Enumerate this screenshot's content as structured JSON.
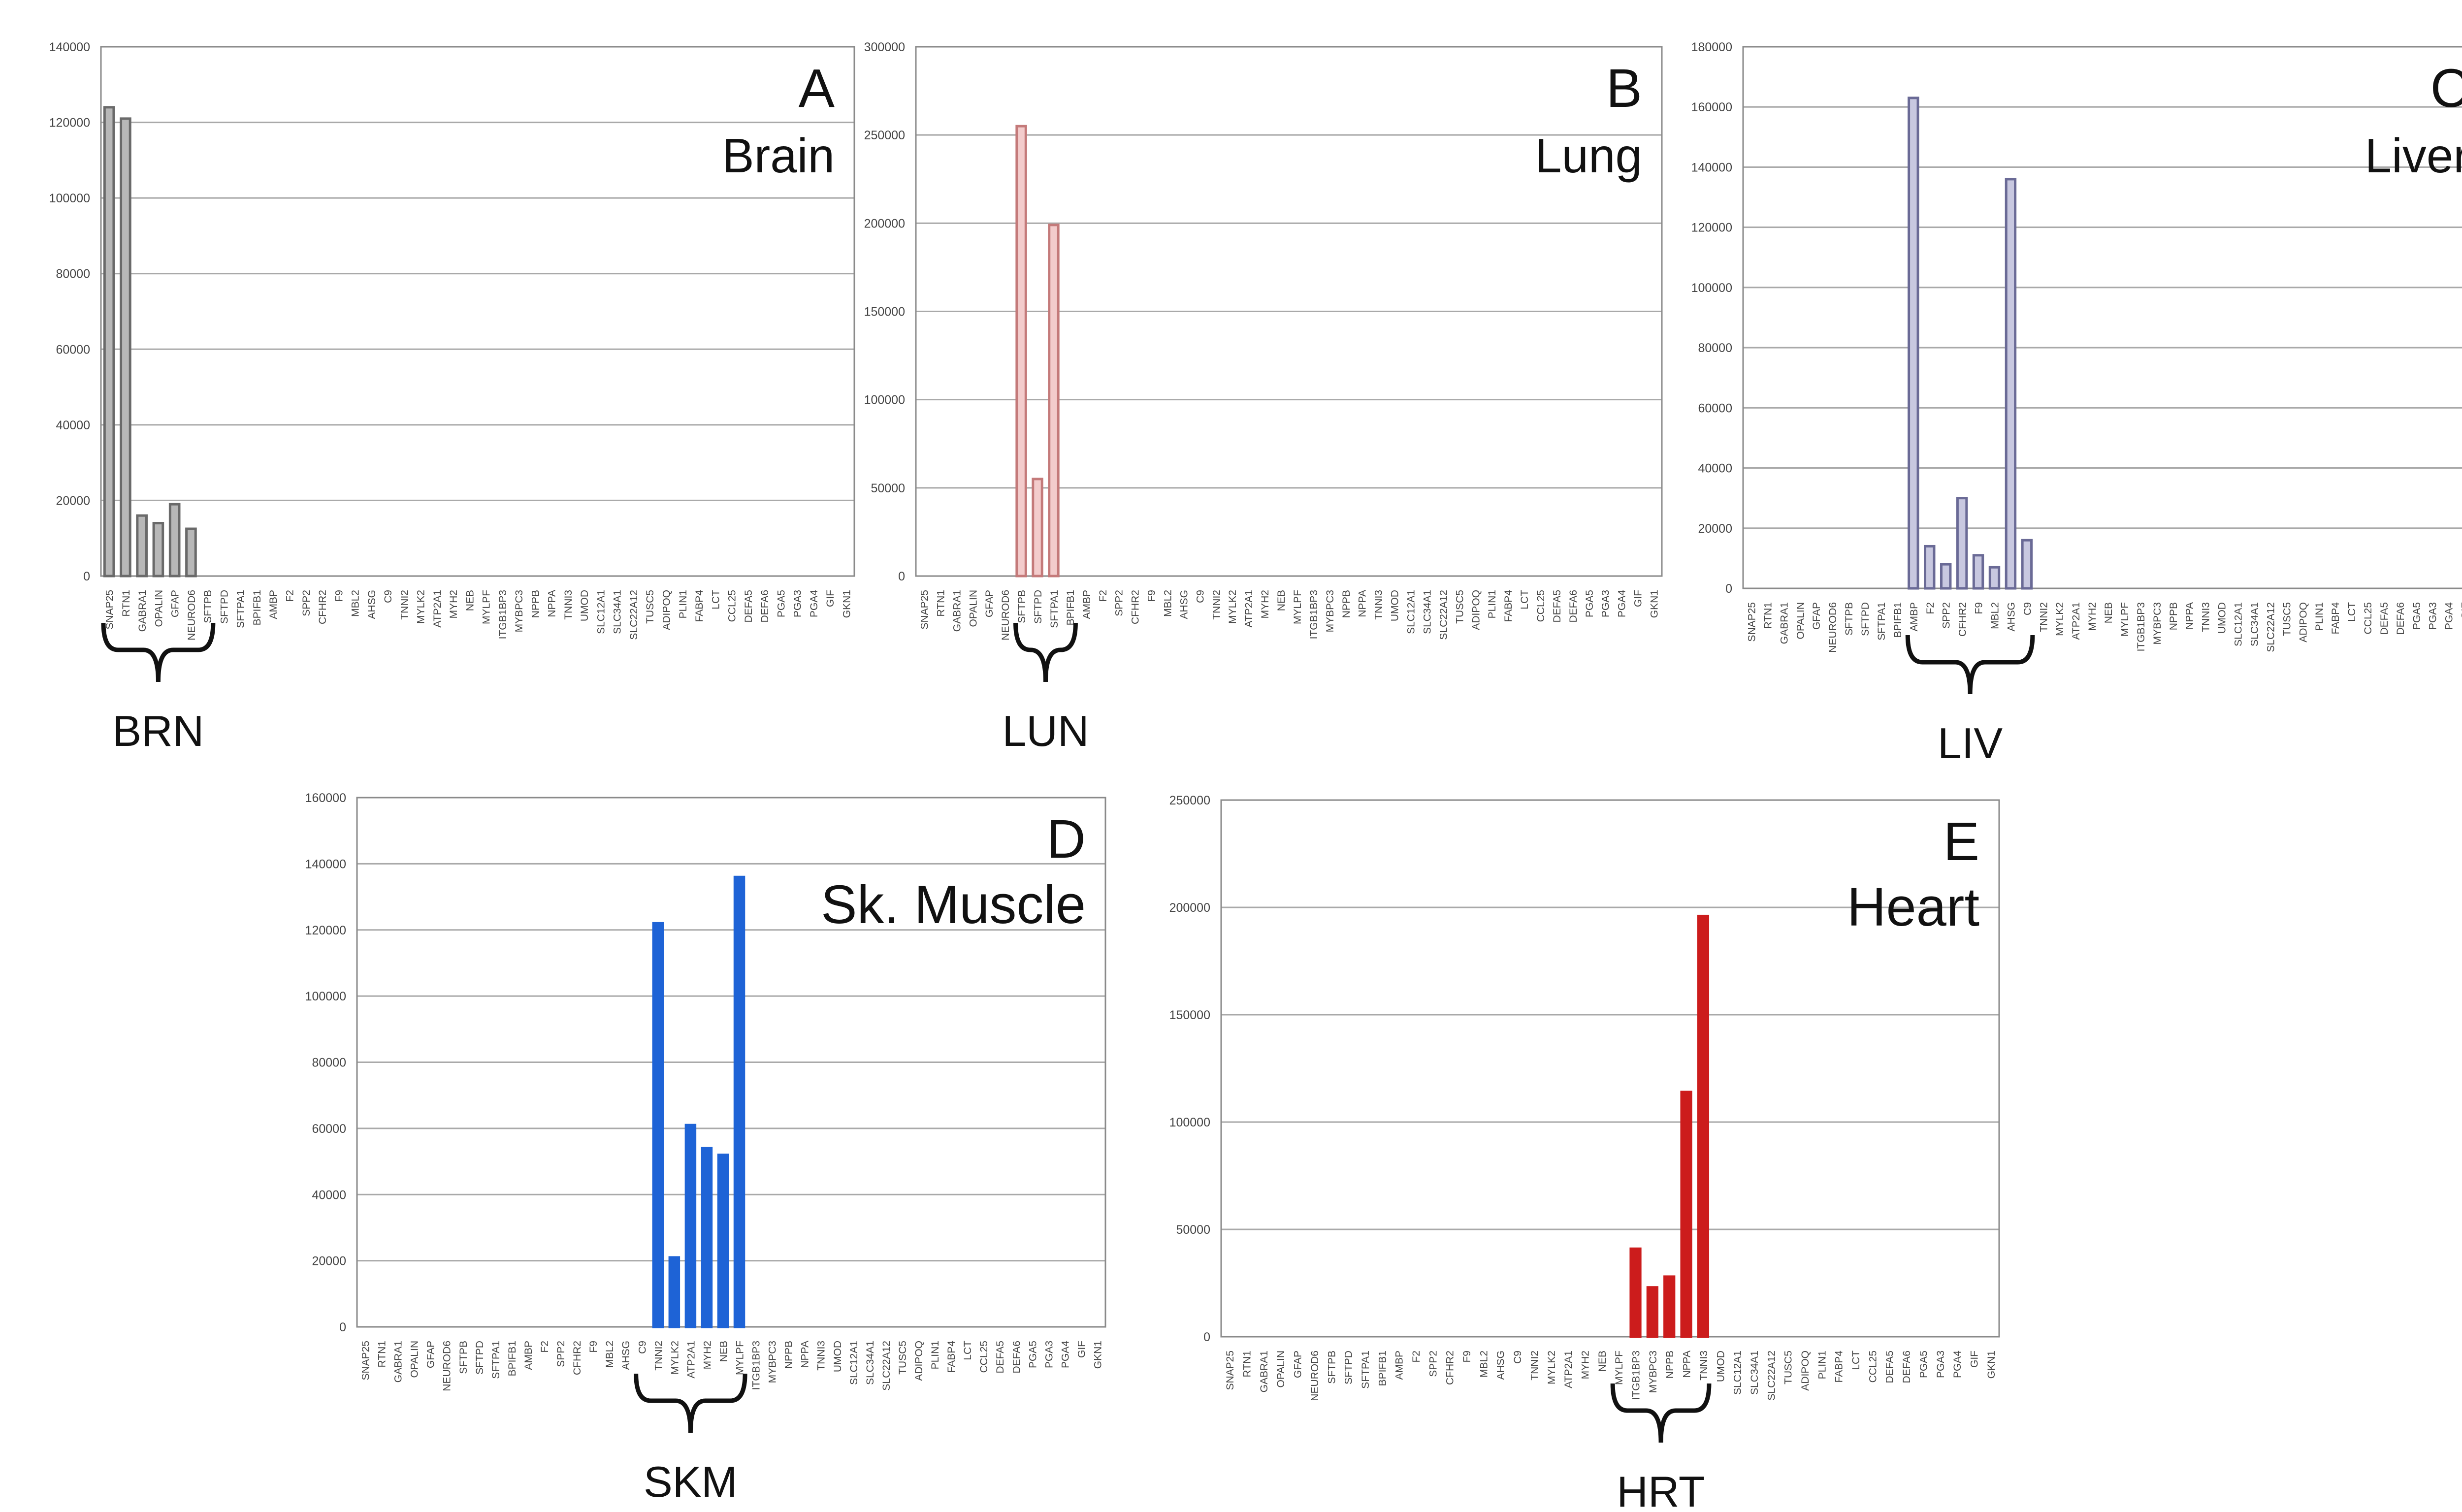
{
  "genes": [
    "SNAP25",
    "RTN1",
    "GABRA1",
    "OPALIN",
    "GFAP",
    "NEUROD6",
    "SFTPB",
    "SFTPD",
    "SFTPA1",
    "BPIFB1",
    "AMBP",
    "F2",
    "SPP2",
    "CFHR2",
    "F9",
    "MBL2",
    "AHSG",
    "C9",
    "TNNI2",
    "MYLK2",
    "ATP2A1",
    "MYH2",
    "NEB",
    "MYLPF",
    "ITGB1BP3",
    "MYBPC3",
    "NPPB",
    "NPPA",
    "TNNI3",
    "UMOD",
    "SLC12A1",
    "SLC34A1",
    "SLC22A12",
    "TUSC5",
    "ADIPOQ",
    "PLIN1",
    "FABP4",
    "LCT",
    "CCL25",
    "DEFA5",
    "DEFA6",
    "PGA5",
    "PGA3",
    "PGA4",
    "GIF",
    "GKN1"
  ],
  "chart_data": [
    {
      "type": "bar",
      "panel_letter": "A",
      "panel_title": "Brain",
      "group_label": "BRN",
      "color": "#b8b8b8",
      "edge_color": "#6a6a6a",
      "ylim": [
        0,
        140000
      ],
      "yticks": [
        0,
        20000,
        40000,
        60000,
        80000,
        100000,
        120000,
        140000
      ],
      "bracket_genes": [
        "SNAP25",
        "SFTPB"
      ],
      "values": {
        "SNAP25": 124000,
        "RTN1": 121000,
        "GABRA1": 16000,
        "OPALIN": 14000,
        "GFAP": 19000,
        "NEUROD6": 12500
      }
    },
    {
      "type": "bar",
      "panel_letter": "B",
      "panel_title": "Lung",
      "group_label": "LUN",
      "color": "#f3cccc",
      "edge_color": "#c47a7a",
      "ylim": [
        0,
        300000
      ],
      "yticks": [
        0,
        50000,
        100000,
        150000,
        200000,
        250000,
        300000
      ],
      "bracket_genes": [
        "SFTPB",
        "BPIFB1"
      ],
      "values": {
        "SFTPB": 255000,
        "SFTPD": 55000,
        "SFTPA1": 199000
      }
    },
    {
      "type": "bar",
      "panel_letter": "C",
      "panel_title": "Liver",
      "group_label": "LIV",
      "color": "#c8c8e0",
      "edge_color": "#6a6a96",
      "ylim": [
        0,
        180000
      ],
      "yticks": [
        0,
        20000,
        40000,
        60000,
        80000,
        100000,
        120000,
        140000,
        160000,
        180000
      ],
      "bracket_genes": [
        "AMBP",
        "C9"
      ],
      "values": {
        "AMBP": 163000,
        "F2": 14000,
        "SPP2": 8000,
        "CFHR2": 30000,
        "F9": 11000,
        "MBL2": 7000,
        "AHSG": 136000,
        "C9": 16000
      }
    },
    {
      "type": "bar",
      "panel_letter": "D",
      "panel_title": "Sk. Muscle",
      "group_label": "SKM",
      "color": "#1e63d6",
      "edge_color": "#1e63d6",
      "ylim": [
        0,
        160000
      ],
      "yticks": [
        0,
        20000,
        40000,
        60000,
        80000,
        100000,
        120000,
        140000,
        160000
      ],
      "bracket_genes": [
        "C9",
        "MYLPF"
      ],
      "values": {
        "TNNI2": 122000,
        "MYLK2": 21000,
        "ATP2A1": 61000,
        "MYH2": 54000,
        "NEB": 52000,
        "MYLPF": 136000
      }
    },
    {
      "type": "bar",
      "panel_letter": "E",
      "panel_title": "Heart",
      "group_label": "HRT",
      "color": "#cc1c1c",
      "edge_color": "#cc1c1c",
      "ylim": [
        0,
        250000
      ],
      "yticks": [
        0,
        50000,
        100000,
        150000,
        200000,
        250000
      ],
      "bracket_genes": [
        "MYLPF",
        "TNNI3"
      ],
      "values": {
        "ITGB1BP3": 41000,
        "MYBPC3": 23000,
        "NPPB": 28000,
        "NPPA": 114000,
        "TNNI3": 196000
      }
    }
  ]
}
